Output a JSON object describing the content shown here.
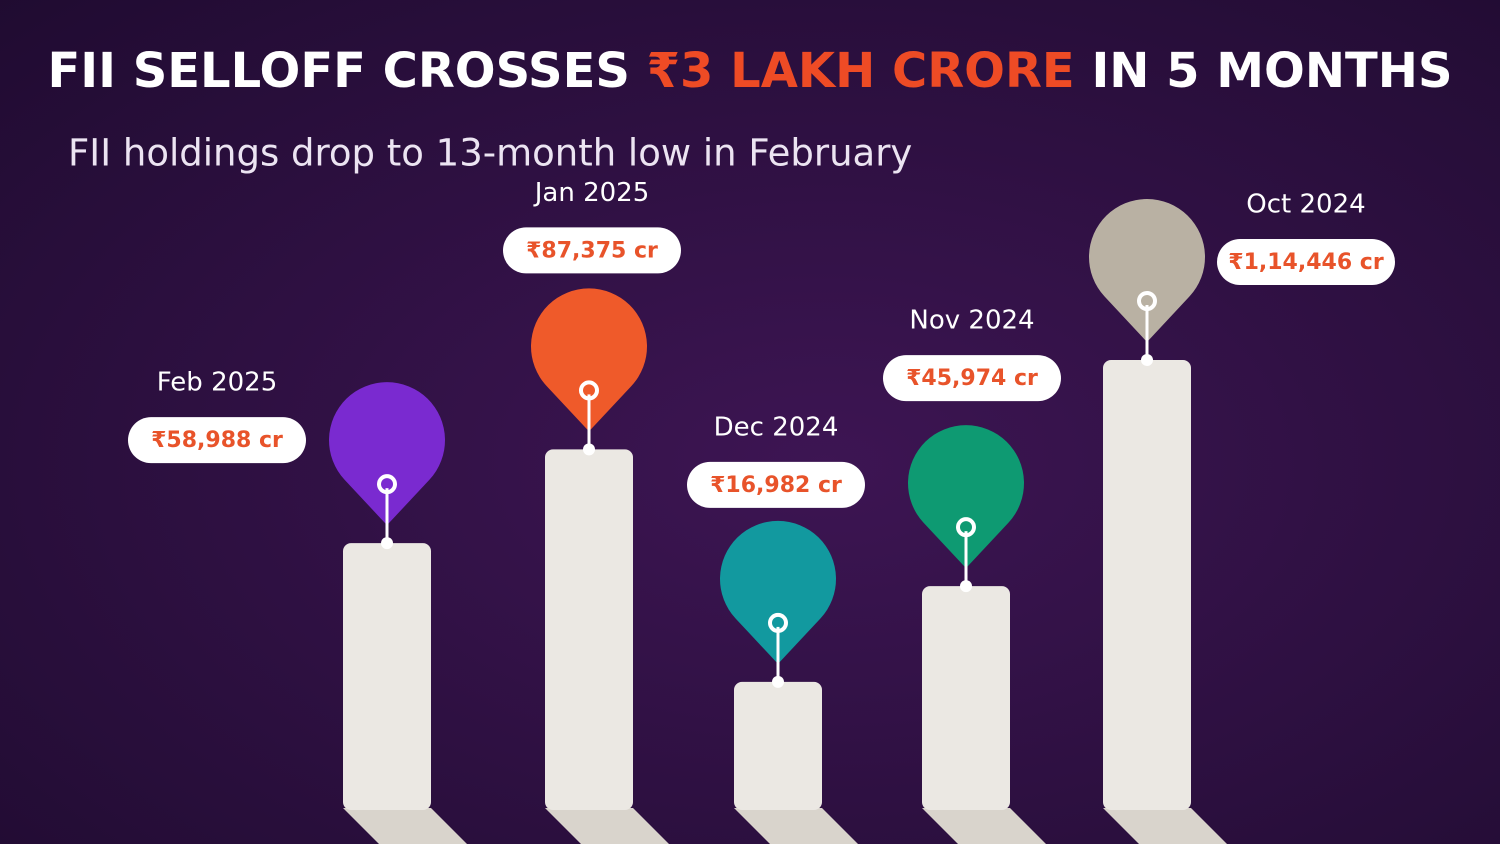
{
  "chart_data": {
    "type": "bar",
    "title": [
      "FII SELLOFF CROSSES",
      "₹3 LAKH CRORE",
      "IN 5 MONTHS"
    ],
    "subtitle": "FII holdings drop to 13-month low in February",
    "categories": [
      "Feb 2025",
      "Jan 2025",
      "Dec 2024",
      "Nov 2024",
      "Oct 2024"
    ],
    "values": [
      58988,
      87375,
      16982,
      45974,
      114446
    ],
    "value_labels": [
      "₹58,988 cr",
      "₹87,375 cr",
      "₹16,982 cr",
      "₹45,974 cr",
      "₹1,14,446 cr"
    ],
    "colors": [
      "#7a2ad0",
      "#ef5a2a",
      "#12999f",
      "#0e9a72",
      "#b9b1a3"
    ]
  }
}
